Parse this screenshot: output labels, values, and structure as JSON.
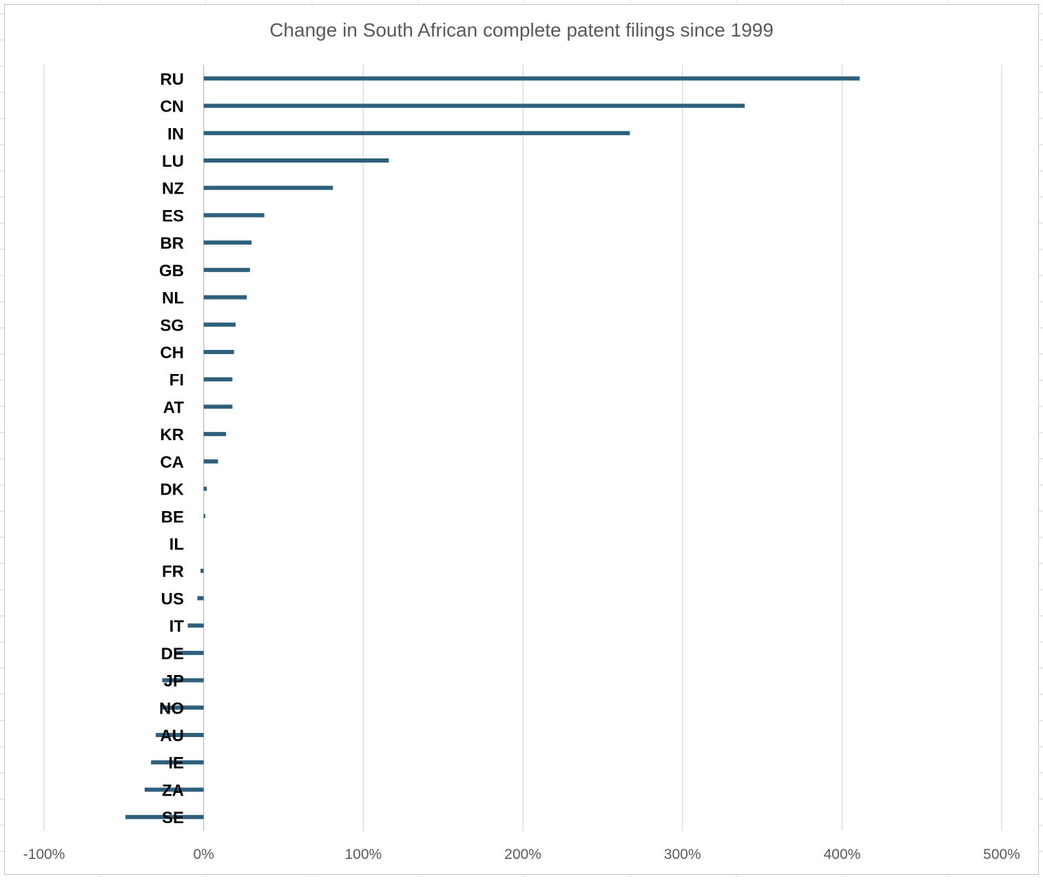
{
  "chart_data": {
    "type": "bar",
    "orientation": "horizontal",
    "title": "Change in South African complete patent filings since 1999",
    "xlabel": "",
    "ylabel": "",
    "categories": [
      "RU",
      "CN",
      "IN",
      "LU",
      "NZ",
      "ES",
      "BR",
      "GB",
      "NL",
      "SG",
      "CH",
      "FI",
      "AT",
      "KR",
      "CA",
      "DK",
      "BE",
      "IL",
      "FR",
      "US",
      "IT",
      "DE",
      "JP",
      "NO",
      "AU",
      "IE",
      "ZA",
      "SE"
    ],
    "values": [
      411,
      339,
      267,
      116,
      81,
      38,
      30,
      29,
      27,
      20,
      19,
      18,
      18,
      14,
      9,
      2,
      1,
      0,
      -2,
      -4,
      -10,
      -17,
      -26,
      -27,
      -30,
      -33,
      -37,
      -49
    ],
    "value_unit": "%",
    "xlim": [
      -100,
      500
    ],
    "xticks": [
      "-100%",
      "0%",
      "100%",
      "200%",
      "300%",
      "400%",
      "500%"
    ],
    "xtick_values": [
      -100,
      0,
      100,
      200,
      300,
      400,
      500
    ],
    "grid": true,
    "legend": "none",
    "bar_color": "#2e5f7c",
    "gridline_color": "#d9d9d9",
    "axis_line_color": "#bfbfbf"
  }
}
